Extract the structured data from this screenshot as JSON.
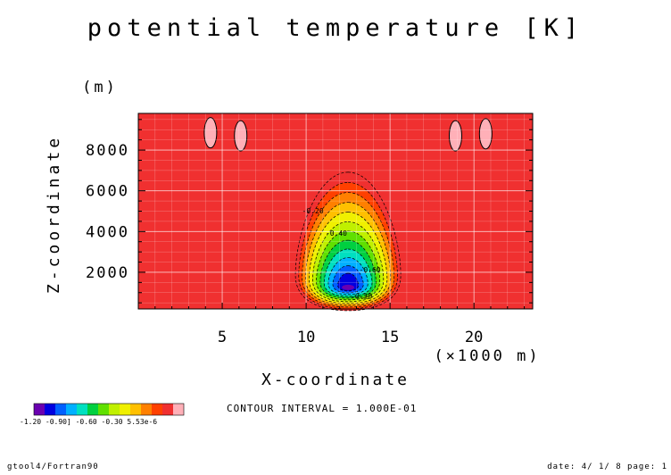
{
  "chart_data": {
    "type": "heatmap",
    "title": "potential temperature [K]",
    "xlabel": "X-coordinate",
    "ylabel": "Z-coordinate",
    "x_units": "(×1000 m)",
    "y_units": "(m)",
    "xlim": [
      0,
      23.5
    ],
    "ylim": [
      200,
      9800
    ],
    "x_ticks": [
      "5",
      "10",
      "15",
      "20"
    ],
    "x_tick_values": [
      5,
      10,
      15,
      20
    ],
    "y_ticks": [
      "2000",
      "4000",
      "6000",
      "8000"
    ],
    "y_tick_values": [
      2000,
      4000,
      6000,
      8000
    ],
    "grid": true,
    "contour_interval_text": "CONTOUR INTERVAL = 1.000E-01",
    "colorbar": {
      "colors": [
        "#6a00b0",
        "#0000e0",
        "#0060ff",
        "#00b0ff",
        "#00e0c0",
        "#00d040",
        "#60e000",
        "#c0f000",
        "#f0f000",
        "#ffc000",
        "#ff8000",
        "#ff4000",
        "#f03030",
        "#ffb0b8"
      ],
      "labels_text": "-1.20  -0.90] -0.60  -0.30    5.53e-6"
    },
    "anomaly": {
      "center_x": 12.5,
      "center_z": 1300,
      "levels": [
        -1.2,
        -1.1,
        -1.0,
        -0.9,
        -0.8,
        -0.7,
        -0.6,
        -0.5,
        -0.4,
        -0.3,
        -0.2,
        -0.1,
        0.0
      ],
      "contour_labels": [
        {
          "text": "-0.20",
          "x": 10.4,
          "z": 4900
        },
        {
          "text": "-0.40",
          "x": 11.8,
          "z": 3800
        },
        {
          "text": "-0.60",
          "x": 13.8,
          "z": 2000
        },
        {
          "text": "-0.20",
          "x": 13.3,
          "z": 700
        }
      ]
    },
    "positive_blobs": [
      {
        "x": 4.3,
        "z": 8850
      },
      {
        "x": 6.1,
        "z": 8700
      },
      {
        "x": 18.9,
        "z": 8700
      },
      {
        "x": 20.7,
        "z": 8800
      }
    ]
  },
  "footer": {
    "left": "gtool4/Fortran90",
    "right": "date: 4/ 1/ 8 page: 1"
  }
}
